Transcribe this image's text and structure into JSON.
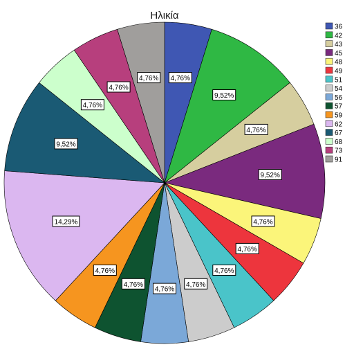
{
  "chart_data": {
    "type": "pie",
    "title": "Ηλικία",
    "legend_position": "right",
    "slices": [
      {
        "label": "36",
        "value": 4.76,
        "display": "4,76%",
        "color": "#3f57b3"
      },
      {
        "label": "42",
        "value": 9.52,
        "display": "9,52%",
        "color": "#2fb844"
      },
      {
        "label": "43",
        "value": 4.76,
        "display": "4,76%",
        "color": "#d6ce9f"
      },
      {
        "label": "45",
        "value": 9.52,
        "display": "9,52%",
        "color": "#7a2a7e"
      },
      {
        "label": "48",
        "value": 4.76,
        "display": "4,76%",
        "color": "#fbf57a"
      },
      {
        "label": "49",
        "value": 4.76,
        "display": "4,76%",
        "color": "#ed353d"
      },
      {
        "label": "51",
        "value": 4.76,
        "display": "4,76%",
        "color": "#4ac4c9"
      },
      {
        "label": "54",
        "value": 4.76,
        "display": "4,76%",
        "color": "#cccccc"
      },
      {
        "label": "56",
        "value": 4.76,
        "display": "4,76%",
        "color": "#7ba8d8"
      },
      {
        "label": "57",
        "value": 4.76,
        "display": "4,76%",
        "color": "#0e5330"
      },
      {
        "label": "59",
        "value": 4.76,
        "display": "4,76%",
        "color": "#f6951f"
      },
      {
        "label": "62",
        "value": 14.29,
        "display": "14,29%",
        "color": "#dbb7f0"
      },
      {
        "label": "67",
        "value": 9.52,
        "display": "9,52%",
        "color": "#1a5a74"
      },
      {
        "label": "68",
        "value": 4.76,
        "display": "4,76%",
        "color": "#ccffcc"
      },
      {
        "label": "73",
        "value": 4.76,
        "display": "4,76%",
        "color": "#b73f7d"
      },
      {
        "label": "91",
        "value": 4.76,
        "display": "4,76%",
        "color": "#a09e9c"
      }
    ]
  }
}
